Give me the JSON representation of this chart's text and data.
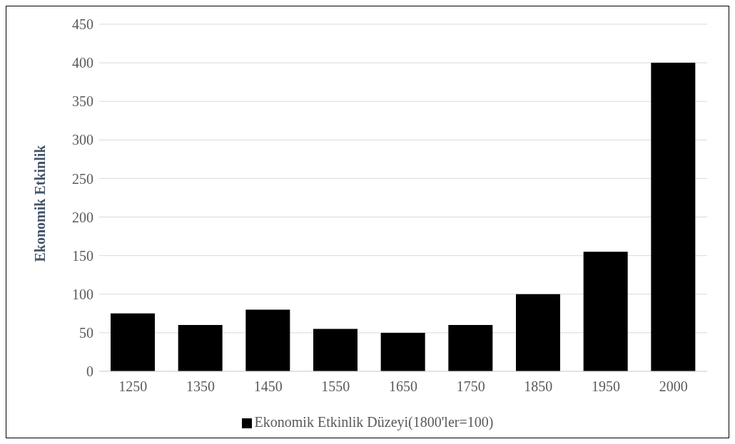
{
  "chart_data": {
    "type": "bar",
    "ylabel": "Ekonomik Etkinlik",
    "categories": [
      "1250",
      "1350",
      "1450",
      "1550",
      "1650",
      "1750",
      "1850",
      "1950",
      "2000"
    ],
    "series": [
      {
        "name": "Ekonomik Etkinlik Düzeyi(1800'ler=100)",
        "color": "#000000",
        "values": [
          75,
          60,
          80,
          55,
          50,
          60,
          100,
          155,
          400
        ]
      }
    ],
    "ylim": [
      0,
      450
    ],
    "yticks": [
      0,
      50,
      100,
      150,
      200,
      250,
      300,
      350,
      400,
      450
    ],
    "grid": "y",
    "legend": "bottom"
  }
}
